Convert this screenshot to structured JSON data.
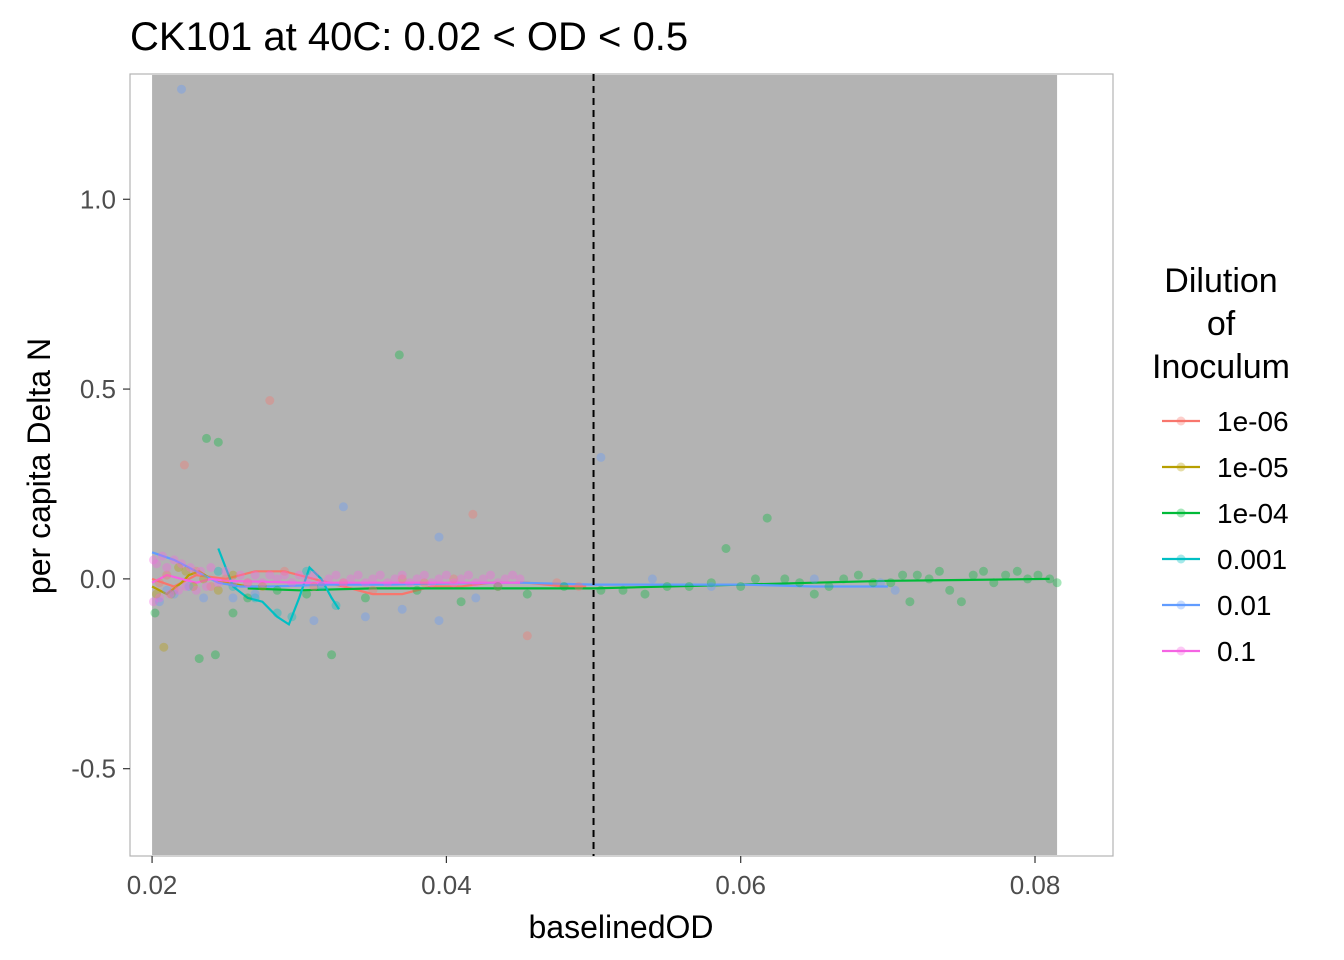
{
  "chart_data": {
    "type": "scatter",
    "title": "CK101 at 40C: 0.02 < OD < 0.5",
    "xlabel": "baselinedOD",
    "ylabel": "per capita Delta N",
    "xlim": [
      0.0185,
      0.0853
    ],
    "ylim": [
      -0.73,
      1.33
    ],
    "xticks": [
      0.02,
      0.04,
      0.06,
      0.08
    ],
    "xtick_labels": [
      "0.02",
      "0.04",
      "0.06",
      "0.08"
    ],
    "yticks": [
      -0.5,
      0.0,
      0.5,
      1.0
    ],
    "ytick_labels": [
      "-0.5",
      "0.0",
      "0.5",
      "1.0"
    ],
    "shaded_region": {
      "x": [
        0.02,
        0.0815
      ],
      "color": "#b3b3b3"
    },
    "vline": {
      "x": 0.05,
      "style": "dashed",
      "color": "#000000"
    },
    "grid": false,
    "legend": {
      "title_lines": [
        "Dilution",
        "of",
        "Inoculum"
      ],
      "placement": "right"
    },
    "series": [
      {
        "name": "1e-06",
        "color": "#F8766D",
        "points": [
          [
            0.0205,
            -0.01
          ],
          [
            0.021,
            0.01
          ],
          [
            0.0215,
            -0.03
          ],
          [
            0.0222,
            0.3
          ],
          [
            0.023,
            0.02
          ],
          [
            0.024,
            -0.02
          ],
          [
            0.025,
            0.0
          ],
          [
            0.0265,
            -0.01
          ],
          [
            0.028,
            0.47
          ],
          [
            0.029,
            0.02
          ],
          [
            0.031,
            -0.02
          ],
          [
            0.033,
            -0.01
          ],
          [
            0.035,
            -0.03
          ],
          [
            0.037,
            0.0
          ],
          [
            0.0385,
            -0.01
          ],
          [
            0.0405,
            0.0
          ],
          [
            0.0418,
            0.17
          ],
          [
            0.0435,
            -0.02
          ],
          [
            0.0455,
            -0.15
          ],
          [
            0.0475,
            -0.01
          ],
          [
            0.049,
            -0.02
          ]
        ],
        "smooth": [
          [
            0.02,
            0.0
          ],
          [
            0.0215,
            -0.02
          ],
          [
            0.023,
            0.01
          ],
          [
            0.025,
            0.0
          ],
          [
            0.027,
            0.02
          ],
          [
            0.029,
            0.02
          ],
          [
            0.031,
            0.0
          ],
          [
            0.033,
            -0.02
          ],
          [
            0.035,
            -0.04
          ],
          [
            0.037,
            -0.04
          ],
          [
            0.039,
            -0.02
          ],
          [
            0.041,
            -0.02
          ],
          [
            0.043,
            -0.01
          ],
          [
            0.0455,
            -0.01
          ],
          [
            0.048,
            -0.02
          ],
          [
            0.0495,
            -0.02
          ]
        ]
      },
      {
        "name": "1e-05",
        "color": "#B79F00",
        "points": [
          [
            0.0203,
            -0.04
          ],
          [
            0.0208,
            -0.18
          ],
          [
            0.0213,
            -0.04
          ],
          [
            0.0218,
            0.03
          ],
          [
            0.0223,
            0.02
          ],
          [
            0.0228,
            -0.02
          ],
          [
            0.0235,
            0.0
          ],
          [
            0.0245,
            -0.03
          ],
          [
            0.0255,
            0.01
          ],
          [
            0.0275,
            -0.02
          ]
        ],
        "smooth": [
          [
            0.02,
            -0.02
          ],
          [
            0.021,
            -0.04
          ],
          [
            0.022,
            -0.01
          ],
          [
            0.0225,
            0.01
          ],
          [
            0.0232,
            0.02
          ],
          [
            0.024,
            0.0
          ],
          [
            0.025,
            -0.01
          ],
          [
            0.0265,
            -0.02
          ],
          [
            0.028,
            -0.02
          ]
        ]
      },
      {
        "name": "1e-04",
        "color": "#00BA38",
        "points": [
          [
            0.0202,
            -0.09
          ],
          [
            0.0232,
            -0.21
          ],
          [
            0.0237,
            0.37
          ],
          [
            0.0243,
            -0.2
          ],
          [
            0.0245,
            0.36
          ],
          [
            0.0255,
            -0.09
          ],
          [
            0.0265,
            -0.05
          ],
          [
            0.0285,
            -0.03
          ],
          [
            0.0305,
            -0.04
          ],
          [
            0.0322,
            -0.2
          ],
          [
            0.0345,
            -0.05
          ],
          [
            0.0368,
            0.59
          ],
          [
            0.038,
            -0.03
          ],
          [
            0.041,
            -0.06
          ],
          [
            0.0435,
            -0.02
          ],
          [
            0.0455,
            -0.04
          ],
          [
            0.048,
            -0.02
          ],
          [
            0.0505,
            -0.03
          ],
          [
            0.052,
            -0.03
          ],
          [
            0.0535,
            -0.04
          ],
          [
            0.055,
            -0.02
          ],
          [
            0.0565,
            -0.02
          ],
          [
            0.058,
            -0.01
          ],
          [
            0.059,
            0.08
          ],
          [
            0.06,
            -0.02
          ],
          [
            0.061,
            0.0
          ],
          [
            0.0618,
            0.16
          ],
          [
            0.063,
            0.0
          ],
          [
            0.064,
            -0.01
          ],
          [
            0.065,
            -0.04
          ],
          [
            0.066,
            -0.02
          ],
          [
            0.067,
            0.0
          ],
          [
            0.068,
            0.01
          ],
          [
            0.069,
            -0.01
          ],
          [
            0.0702,
            -0.01
          ],
          [
            0.071,
            0.01
          ],
          [
            0.0715,
            -0.06
          ],
          [
            0.072,
            0.01
          ],
          [
            0.0728,
            0.0
          ],
          [
            0.0735,
            0.02
          ],
          [
            0.0742,
            -0.03
          ],
          [
            0.075,
            -0.06
          ],
          [
            0.0758,
            0.01
          ],
          [
            0.0765,
            0.02
          ],
          [
            0.0772,
            -0.01
          ],
          [
            0.078,
            0.01
          ],
          [
            0.0788,
            0.02
          ],
          [
            0.0795,
            0.0
          ],
          [
            0.0802,
            0.01
          ],
          [
            0.081,
            0.0
          ],
          [
            0.0815,
            -0.01
          ]
        ],
        "smooth": [
          [
            0.0265,
            -0.025
          ],
          [
            0.03,
            -0.03
          ],
          [
            0.035,
            -0.025
          ],
          [
            0.04,
            -0.025
          ],
          [
            0.045,
            -0.025
          ],
          [
            0.05,
            -0.025
          ],
          [
            0.055,
            -0.02
          ],
          [
            0.06,
            -0.015
          ],
          [
            0.065,
            -0.01
          ],
          [
            0.07,
            -0.005
          ],
          [
            0.075,
            -0.003
          ],
          [
            0.081,
            0.0
          ]
        ]
      },
      {
        "name": "0.001",
        "color": "#00BFC4",
        "points": [
          [
            0.0245,
            0.02
          ],
          [
            0.0255,
            -0.02
          ],
          [
            0.027,
            -0.05
          ],
          [
            0.0285,
            -0.09
          ],
          [
            0.0295,
            -0.1
          ],
          [
            0.0305,
            0.02
          ],
          [
            0.0315,
            -0.02
          ],
          [
            0.0325,
            -0.07
          ]
        ],
        "smooth": [
          [
            0.0245,
            0.08
          ],
          [
            0.0255,
            -0.02
          ],
          [
            0.0265,
            -0.05
          ],
          [
            0.0275,
            -0.06
          ],
          [
            0.0285,
            -0.1
          ],
          [
            0.0293,
            -0.12
          ],
          [
            0.03,
            -0.05
          ],
          [
            0.0307,
            0.03
          ],
          [
            0.0315,
            0.0
          ],
          [
            0.0322,
            -0.05
          ],
          [
            0.0327,
            -0.08
          ]
        ]
      },
      {
        "name": "0.01",
        "color": "#619CFF",
        "points": [
          [
            0.0205,
            -0.06
          ],
          [
            0.021,
            -0.03
          ],
          [
            0.0215,
            -0.04
          ],
          [
            0.022,
            1.29
          ],
          [
            0.0225,
            -0.02
          ],
          [
            0.0235,
            -0.05
          ],
          [
            0.0255,
            -0.05
          ],
          [
            0.027,
            -0.04
          ],
          [
            0.031,
            -0.11
          ],
          [
            0.033,
            0.19
          ],
          [
            0.0345,
            -0.1
          ],
          [
            0.037,
            -0.08
          ],
          [
            0.0395,
            0.11
          ],
          [
            0.0395,
            -0.11
          ],
          [
            0.042,
            -0.05
          ],
          [
            0.0505,
            0.32
          ],
          [
            0.054,
            0.0
          ],
          [
            0.058,
            -0.02
          ],
          [
            0.065,
            0.0
          ],
          [
            0.0695,
            -0.01
          ],
          [
            0.0705,
            -0.03
          ]
        ],
        "smooth": [
          [
            0.02,
            0.07
          ],
          [
            0.0215,
            0.05
          ],
          [
            0.023,
            0.02
          ],
          [
            0.0245,
            -0.01
          ],
          [
            0.026,
            -0.02
          ],
          [
            0.028,
            -0.02
          ],
          [
            0.032,
            -0.015
          ],
          [
            0.036,
            -0.015
          ],
          [
            0.04,
            -0.012
          ],
          [
            0.045,
            -0.01
          ],
          [
            0.05,
            -0.015
          ],
          [
            0.055,
            -0.015
          ],
          [
            0.06,
            -0.015
          ],
          [
            0.065,
            -0.02
          ],
          [
            0.07,
            -0.02
          ]
        ]
      },
      {
        "name": "0.1",
        "color": "#F564E3",
        "points": [
          [
            0.0201,
            0.05
          ],
          [
            0.0201,
            -0.06
          ],
          [
            0.0203,
            0.04
          ],
          [
            0.0205,
            -0.05
          ],
          [
            0.0207,
            0.06
          ],
          [
            0.021,
            0.03
          ],
          [
            0.0212,
            -0.04
          ],
          [
            0.0215,
            0.05
          ],
          [
            0.0218,
            -0.03
          ],
          [
            0.022,
            0.04
          ],
          [
            0.0223,
            -0.02
          ],
          [
            0.0226,
            0.03
          ],
          [
            0.023,
            -0.03
          ],
          [
            0.0233,
            0.02
          ],
          [
            0.0237,
            -0.02
          ],
          [
            0.024,
            0.03
          ],
          [
            0.0245,
            -0.01
          ],
          [
            0.025,
            0.02
          ],
          [
            0.0255,
            -0.01
          ],
          [
            0.026,
            0.01
          ],
          [
            0.0265,
            -0.01
          ],
          [
            0.027,
            0.01
          ],
          [
            0.0275,
            -0.01
          ],
          [
            0.028,
            0.01
          ],
          [
            0.0285,
            0.0
          ],
          [
            0.029,
            0.01
          ],
          [
            0.0295,
            -0.01
          ],
          [
            0.03,
            0.01
          ],
          [
            0.0305,
            0.0
          ],
          [
            0.031,
            0.01
          ],
          [
            0.0315,
            -0.01
          ],
          [
            0.032,
            0.0
          ],
          [
            0.0325,
            0.01
          ],
          [
            0.033,
            -0.01
          ],
          [
            0.0335,
            0.0
          ],
          [
            0.034,
            0.01
          ],
          [
            0.0345,
            -0.01
          ],
          [
            0.035,
            0.0
          ],
          [
            0.0355,
            0.01
          ],
          [
            0.036,
            -0.01
          ],
          [
            0.0365,
            0.0
          ],
          [
            0.037,
            0.01
          ],
          [
            0.0375,
            -0.01
          ],
          [
            0.038,
            0.0
          ],
          [
            0.0385,
            0.01
          ],
          [
            0.039,
            -0.01
          ],
          [
            0.0395,
            0.0
          ],
          [
            0.04,
            0.01
          ],
          [
            0.0405,
            -0.01
          ],
          [
            0.041,
            0.0
          ],
          [
            0.0415,
            0.01
          ],
          [
            0.042,
            -0.01
          ],
          [
            0.0425,
            0.0
          ],
          [
            0.043,
            0.01
          ],
          [
            0.0435,
            -0.01
          ],
          [
            0.044,
            0.0
          ],
          [
            0.0445,
            0.01
          ],
          [
            0.045,
            0.0
          ]
        ],
        "smooth": [
          [
            0.02,
            -0.01
          ],
          [
            0.021,
            0.01
          ],
          [
            0.022,
            0.0
          ],
          [
            0.023,
            -0.01
          ],
          [
            0.024,
            0.0
          ],
          [
            0.025,
            -0.005
          ],
          [
            0.03,
            -0.01
          ],
          [
            0.035,
            -0.01
          ],
          [
            0.04,
            -0.01
          ],
          [
            0.045,
            -0.01
          ]
        ]
      }
    ]
  }
}
